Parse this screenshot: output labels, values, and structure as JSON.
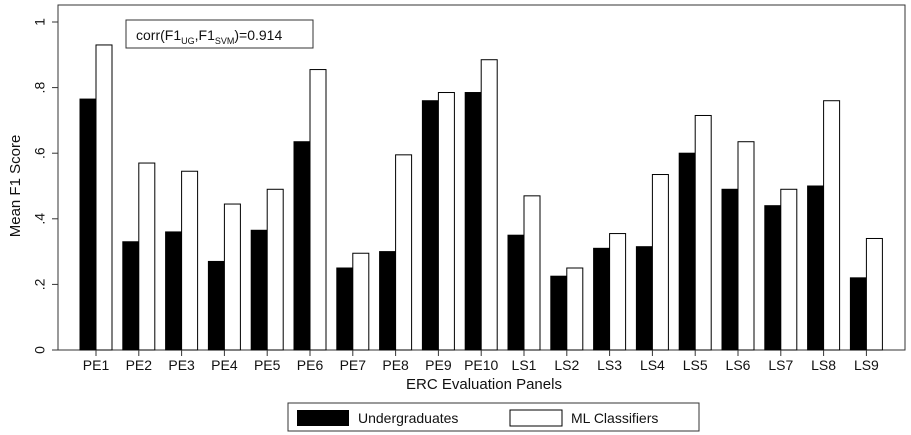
{
  "chart_data": {
    "type": "bar",
    "xlabel": "ERC Evaluation Panels",
    "ylabel": "Mean F1 Score",
    "ylim": [
      0,
      1
    ],
    "yticks": [
      0,
      0.2,
      0.4,
      0.6,
      0.8,
      1
    ],
    "ytick_labels": [
      "0",
      ".2",
      ".4",
      ".6",
      ".8",
      "1"
    ],
    "grid": false,
    "legend_position": "bottom",
    "annotation": {
      "prefix": "corr(F1",
      "sub1": "UG",
      "mid": ",F1",
      "sub2": "SVM",
      "suffix": ")=0.914"
    },
    "categories": [
      "PE1",
      "PE2",
      "PE3",
      "PE4",
      "PE5",
      "PE6",
      "PE7",
      "PE8",
      "PE9",
      "PE10",
      "LS1",
      "LS2",
      "LS3",
      "LS4",
      "LS5",
      "LS6",
      "LS7",
      "LS8",
      "LS9"
    ],
    "series": [
      {
        "name": "Undergraduates",
        "color": "#000000",
        "values": [
          0.765,
          0.33,
          0.36,
          0.27,
          0.365,
          0.635,
          0.25,
          0.3,
          0.76,
          0.785,
          0.35,
          0.225,
          0.31,
          0.315,
          0.6,
          0.49,
          0.44,
          0.5,
          0.22
        ]
      },
      {
        "name": "ML Classifiers",
        "color": "#ffffff",
        "values": [
          0.93,
          0.57,
          0.545,
          0.445,
          0.49,
          0.855,
          0.295,
          0.595,
          0.785,
          0.885,
          0.47,
          0.25,
          0.355,
          0.535,
          0.715,
          0.635,
          0.49,
          0.76,
          0.34
        ]
      }
    ]
  }
}
